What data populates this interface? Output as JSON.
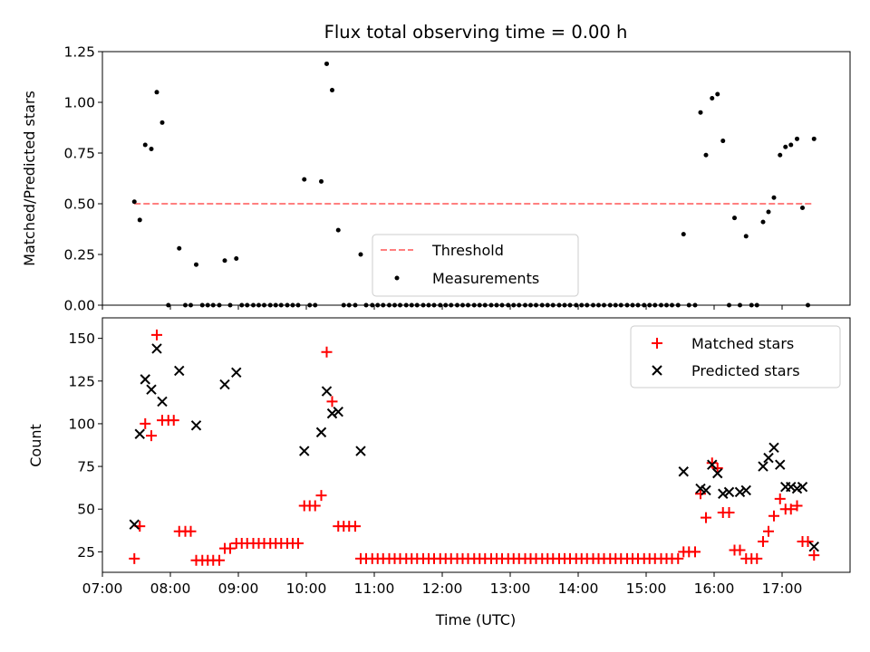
{
  "chart_data": [
    {
      "type": "scatter",
      "title": "Flux total observing time = 0.00 h",
      "ylabel": "Matched/Predicted stars",
      "xlabel": "",
      "xlim": [
        7.0,
        18.0
      ],
      "ylim": [
        0.0,
        1.25
      ],
      "yticks": [
        "0.00",
        "0.25",
        "0.50",
        "0.75",
        "1.00",
        "1.25"
      ],
      "grid": false,
      "legend": "lower-center",
      "threshold": {
        "name": "Threshold",
        "value": 0.5,
        "x": [
          7.47,
          17.47
        ],
        "color": "#ff7f7f"
      },
      "series": [
        {
          "name": "Measurements",
          "color": "#000000",
          "x": [
            7.47,
            7.55,
            7.63,
            7.72,
            7.8,
            7.88,
            7.97,
            8.13,
            8.22,
            8.3,
            8.38,
            8.47,
            8.55,
            8.63,
            8.72,
            8.8,
            8.88,
            8.97,
            9.05,
            9.13,
            9.22,
            9.3,
            9.38,
            9.47,
            9.55,
            9.63,
            9.72,
            9.8,
            9.88,
            9.97,
            10.05,
            10.13,
            10.22,
            10.3,
            10.38,
            10.47,
            10.55,
            10.63,
            10.72,
            10.8,
            10.88,
            10.97,
            11.05,
            11.13,
            11.22,
            11.3,
            11.38,
            11.47,
            11.55,
            11.63,
            11.72,
            11.8,
            11.88,
            11.97,
            12.05,
            12.13,
            12.22,
            12.3,
            12.38,
            12.47,
            12.55,
            12.63,
            12.72,
            12.8,
            12.88,
            12.97,
            13.05,
            13.13,
            13.22,
            13.3,
            13.38,
            13.47,
            13.55,
            13.63,
            13.72,
            13.8,
            13.88,
            13.97,
            14.05,
            14.13,
            14.22,
            14.3,
            14.38,
            14.47,
            14.55,
            14.63,
            14.72,
            14.8,
            14.88,
            14.97,
            15.05,
            15.13,
            15.22,
            15.3,
            15.38,
            15.47,
            15.55,
            15.63,
            15.72,
            15.8,
            15.88,
            15.97,
            16.05,
            16.13,
            16.22,
            16.3,
            16.38,
            16.47,
            16.55,
            16.63,
            16.72,
            16.8,
            16.88,
            16.97,
            17.05,
            17.13,
            17.22,
            17.3,
            17.38,
            17.47
          ],
          "y": [
            0.51,
            0.42,
            0.79,
            0.77,
            1.05,
            0.9,
            0.0,
            0.28,
            0.0,
            0.0,
            0.2,
            0.0,
            0.0,
            0.0,
            0.0,
            0.22,
            0.0,
            0.23,
            0.0,
            0.0,
            0.0,
            0.0,
            0.0,
            0.0,
            0.0,
            0.0,
            0.0,
            0.0,
            0.0,
            0.62,
            0.0,
            0.0,
            0.61,
            1.19,
            1.06,
            0.37,
            0.0,
            0.0,
            0.0,
            0.25,
            0.0,
            0.0,
            0.0,
            0.0,
            0.0,
            0.0,
            0.0,
            0.0,
            0.0,
            0.0,
            0.0,
            0.0,
            0.0,
            0.0,
            0.0,
            0.0,
            0.0,
            0.0,
            0.0,
            0.0,
            0.0,
            0.0,
            0.0,
            0.0,
            0.0,
            0.0,
            0.0,
            0.0,
            0.0,
            0.0,
            0.0,
            0.0,
            0.0,
            0.0,
            0.0,
            0.0,
            0.0,
            0.0,
            0.0,
            0.0,
            0.0,
            0.0,
            0.0,
            0.0,
            0.0,
            0.0,
            0.0,
            0.0,
            0.0,
            0.0,
            0.0,
            0.0,
            0.0,
            0.0,
            0.0,
            0.0,
            0.35,
            0.0,
            0.0,
            0.95,
            0.74,
            1.02,
            1.04,
            0.81,
            0.0,
            0.43,
            0.0,
            0.34,
            0.0,
            0.0,
            0.41,
            0.46,
            0.53,
            0.74,
            0.78,
            0.79,
            0.82,
            0.48,
            0.0,
            0.82
          ]
        }
      ]
    },
    {
      "type": "scatter",
      "title": "",
      "xlabel": "Time (UTC)",
      "ylabel": "Count",
      "xlim": [
        7.0,
        18.0
      ],
      "ylim": [
        13.0,
        162.0
      ],
      "xticks": [
        "07:00",
        "08:00",
        "09:00",
        "10:00",
        "11:00",
        "12:00",
        "13:00",
        "14:00",
        "15:00",
        "16:00",
        "17:00"
      ],
      "yticks": [
        "25",
        "50",
        "75",
        "100",
        "125",
        "150"
      ],
      "grid": false,
      "legend": "top-right",
      "series": [
        {
          "name": "Matched stars",
          "color": "#ff0000",
          "marker": "plus",
          "x": [
            7.47,
            7.55,
            7.63,
            7.72,
            7.8,
            7.88,
            7.97,
            8.05,
            8.13,
            8.22,
            8.3,
            8.38,
            8.47,
            8.55,
            8.63,
            8.72,
            8.8,
            8.88,
            8.97,
            9.05,
            9.13,
            9.22,
            9.3,
            9.38,
            9.47,
            9.55,
            9.63,
            9.72,
            9.8,
            9.88,
            9.97,
            10.05,
            10.13,
            10.22,
            10.3,
            10.38,
            10.47,
            10.55,
            10.63,
            10.72,
            10.8,
            10.88,
            10.97,
            11.05,
            11.13,
            11.22,
            11.3,
            11.38,
            11.47,
            11.55,
            11.63,
            11.72,
            11.8,
            11.88,
            11.97,
            12.05,
            12.13,
            12.22,
            12.3,
            12.38,
            12.47,
            12.55,
            12.63,
            12.72,
            12.8,
            12.88,
            12.97,
            13.05,
            13.13,
            13.22,
            13.3,
            13.38,
            13.47,
            13.55,
            13.63,
            13.72,
            13.8,
            13.88,
            13.97,
            14.05,
            14.13,
            14.22,
            14.3,
            14.38,
            14.47,
            14.55,
            14.63,
            14.72,
            14.8,
            14.88,
            14.97,
            15.05,
            15.13,
            15.22,
            15.3,
            15.38,
            15.47,
            15.55,
            15.63,
            15.72,
            15.8,
            15.88,
            15.97,
            16.05,
            16.13,
            16.22,
            16.3,
            16.38,
            16.47,
            16.55,
            16.63,
            16.72,
            16.8,
            16.88,
            16.97,
            17.05,
            17.13,
            17.22,
            17.3,
            17.38,
            17.47
          ],
          "y": [
            21,
            40,
            100,
            93,
            152,
            102,
            102,
            102,
            37,
            37,
            37,
            20,
            20,
            20,
            20,
            20,
            27,
            27,
            30,
            30,
            30,
            30,
            30,
            30,
            30,
            30,
            30,
            30,
            30,
            30,
            52,
            52,
            52,
            58,
            142,
            113,
            40,
            40,
            40,
            40,
            21,
            21,
            21,
            21,
            21,
            21,
            21,
            21,
            21,
            21,
            21,
            21,
            21,
            21,
            21,
            21,
            21,
            21,
            21,
            21,
            21,
            21,
            21,
            21,
            21,
            21,
            21,
            21,
            21,
            21,
            21,
            21,
            21,
            21,
            21,
            21,
            21,
            21,
            21,
            21,
            21,
            21,
            21,
            21,
            21,
            21,
            21,
            21,
            21,
            21,
            21,
            21,
            21,
            21,
            21,
            21,
            21,
            25,
            25,
            25,
            59,
            45,
            77,
            74,
            48,
            48,
            26,
            26,
            21,
            21,
            21,
            31,
            37,
            46,
            56,
            50,
            50,
            52,
            31,
            31,
            23
          ]
        },
        {
          "name": "Predicted stars",
          "color": "#000000",
          "marker": "x",
          "x": [
            7.47,
            7.55,
            7.63,
            7.72,
            7.8,
            7.88,
            8.13,
            8.38,
            8.8,
            8.97,
            9.97,
            10.22,
            10.3,
            10.38,
            10.47,
            10.8,
            15.55,
            15.8,
            15.88,
            15.97,
            16.05,
            16.13,
            16.22,
            16.38,
            16.47,
            16.72,
            16.8,
            16.88,
            16.97,
            17.05,
            17.13,
            17.22,
            17.3,
            17.47
          ],
          "y": [
            41,
            94,
            126,
            120,
            144,
            113,
            131,
            99,
            123,
            130,
            84,
            95,
            119,
            106,
            107,
            84,
            72,
            62,
            61,
            76,
            71,
            59,
            60,
            60,
            61,
            75,
            80,
            86,
            76,
            63,
            63,
            62,
            63,
            28
          ]
        }
      ]
    }
  ]
}
